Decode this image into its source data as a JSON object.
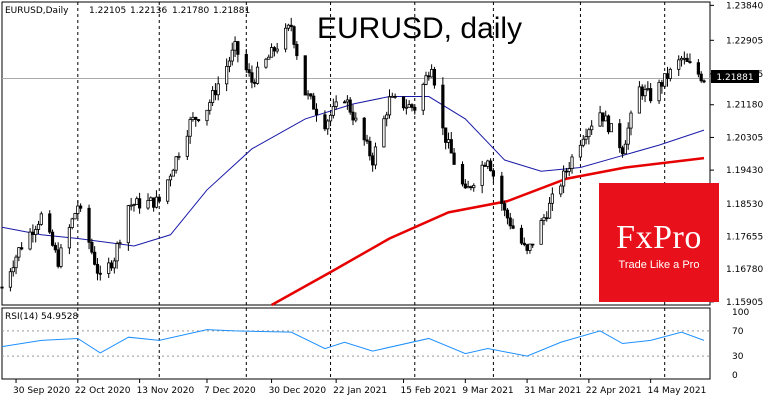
{
  "chart_data": {
    "type": "candlestick",
    "title": "EURUSD, daily",
    "header": {
      "symbol": "EURUSD,Daily",
      "ohlc": [
        "1.22105",
        "1.22136",
        "1.21780",
        "1.21881"
      ]
    },
    "last_price_label": "1.21881",
    "last_price": 1.21881,
    "y_ticks": [
      "1.23840",
      "1.22905",
      "1.22005",
      "1.21180",
      "1.20305",
      "1.19430",
      "1.18530",
      "1.17655",
      "1.16780",
      "1.15905"
    ],
    "ylim": [
      1.1582,
      1.2393
    ],
    "x_ticks": [
      "30 Sep 2020",
      "22 Oct 2020",
      "13 Nov 2020",
      "7 Dec 2020",
      "30 Dec 2020",
      "22 Jan 2021",
      "15 Feb 2021",
      "9 Mar 2021",
      "31 Mar 2021",
      "22 Apr 2021",
      "14 May 2021"
    ],
    "price_path": [
      {
        "date": "2020-09-25",
        "close": 1.163
      },
      {
        "date": "2020-10-01",
        "close": 1.173
      },
      {
        "date": "2020-10-09",
        "close": 1.182
      },
      {
        "date": "2020-10-15",
        "close": 1.17
      },
      {
        "date": "2020-10-22",
        "close": 1.185
      },
      {
        "date": "2020-10-30",
        "close": 1.165
      },
      {
        "date": "2020-11-04",
        "close": 1.171
      },
      {
        "date": "2020-11-09",
        "close": 1.185
      },
      {
        "date": "2020-11-20",
        "close": 1.186
      },
      {
        "date": "2020-12-01",
        "close": 1.207
      },
      {
        "date": "2020-12-07",
        "close": 1.211
      },
      {
        "date": "2020-12-17",
        "close": 1.227
      },
      {
        "date": "2020-12-23",
        "close": 1.218
      },
      {
        "date": "2021-01-06",
        "close": 1.233
      },
      {
        "date": "2021-01-11",
        "close": 1.215
      },
      {
        "date": "2021-01-18",
        "close": 1.207
      },
      {
        "date": "2021-01-25",
        "close": 1.214
      },
      {
        "date": "2021-02-04",
        "close": 1.197
      },
      {
        "date": "2021-02-10",
        "close": 1.213
      },
      {
        "date": "2021-02-19",
        "close": 1.211
      },
      {
        "date": "2021-02-25",
        "close": 1.223
      },
      {
        "date": "2021-03-01",
        "close": 1.205
      },
      {
        "date": "2021-03-09",
        "close": 1.188
      },
      {
        "date": "2021-03-17",
        "close": 1.198
      },
      {
        "date": "2021-03-23",
        "close": 1.183
      },
      {
        "date": "2021-03-31",
        "close": 1.172
      },
      {
        "date": "2021-04-05",
        "close": 1.18
      },
      {
        "date": "2021-04-12",
        "close": 1.191
      },
      {
        "date": "2021-04-20",
        "close": 1.204
      },
      {
        "date": "2021-04-26",
        "close": 1.21
      },
      {
        "date": "2021-05-04",
        "close": 1.2
      },
      {
        "date": "2021-05-10",
        "close": 1.216
      },
      {
        "date": "2021-05-14",
        "close": 1.214
      },
      {
        "date": "2021-05-25",
        "close": 1.224
      },
      {
        "date": "2021-06-02",
        "close": 1.2188
      }
    ],
    "ma_fast": [
      {
        "date": "2020-09-25",
        "value": 1.179
      },
      {
        "date": "2020-10-09",
        "value": 1.177
      },
      {
        "date": "2020-10-22",
        "value": 1.176
      },
      {
        "date": "2020-11-11",
        "value": 1.174
      },
      {
        "date": "2020-11-24",
        "value": 1.177
      },
      {
        "date": "2020-12-07",
        "value": 1.189
      },
      {
        "date": "2020-12-23",
        "value": 1.2
      },
      {
        "date": "2021-01-11",
        "value": 1.208
      },
      {
        "date": "2021-01-28",
        "value": 1.212
      },
      {
        "date": "2021-02-10",
        "value": 1.214
      },
      {
        "date": "2021-02-24",
        "value": 1.214
      },
      {
        "date": "2021-03-09",
        "value": 1.208
      },
      {
        "date": "2021-03-23",
        "value": 1.197
      },
      {
        "date": "2021-04-05",
        "value": 1.194
      },
      {
        "date": "2021-04-19",
        "value": 1.195
      },
      {
        "date": "2021-05-03",
        "value": 1.198
      },
      {
        "date": "2021-05-17",
        "value": 1.201
      },
      {
        "date": "2021-06-02",
        "value": 1.205
      }
    ],
    "ma_slow": [
      {
        "date": "2020-12-30",
        "value": 1.158
      },
      {
        "date": "2021-01-20",
        "value": 1.167
      },
      {
        "date": "2021-02-10",
        "value": 1.176
      },
      {
        "date": "2021-03-03",
        "value": 1.183
      },
      {
        "date": "2021-03-24",
        "value": 1.186
      },
      {
        "date": "2021-04-14",
        "value": 1.192
      },
      {
        "date": "2021-05-05",
        "value": 1.195
      },
      {
        "date": "2021-06-02",
        "value": 1.1975
      }
    ],
    "rsi": {
      "label": "RSI(14) 54.9528",
      "y_ticks": [
        "100",
        "70",
        "30",
        "0"
      ],
      "levels": [
        70,
        30
      ],
      "ylim": [
        0,
        100
      ],
      "values": [
        {
          "date": "2020-09-25",
          "value": 45
        },
        {
          "date": "2020-10-09",
          "value": 55
        },
        {
          "date": "2020-10-22",
          "value": 58
        },
        {
          "date": "2020-10-30",
          "value": 35
        },
        {
          "date": "2020-11-09",
          "value": 60
        },
        {
          "date": "2020-11-20",
          "value": 55
        },
        {
          "date": "2020-12-07",
          "value": 72
        },
        {
          "date": "2020-12-17",
          "value": 70
        },
        {
          "date": "2021-01-06",
          "value": 68
        },
        {
          "date": "2021-01-18",
          "value": 42
        },
        {
          "date": "2021-01-25",
          "value": 52
        },
        {
          "date": "2021-02-04",
          "value": 38
        },
        {
          "date": "2021-02-24",
          "value": 58
        },
        {
          "date": "2021-03-09",
          "value": 34
        },
        {
          "date": "2021-03-17",
          "value": 42
        },
        {
          "date": "2021-03-31",
          "value": 30
        },
        {
          "date": "2021-04-12",
          "value": 52
        },
        {
          "date": "2021-04-26",
          "value": 70
        },
        {
          "date": "2021-05-04",
          "value": 50
        },
        {
          "date": "2021-05-14",
          "value": 55
        },
        {
          "date": "2021-05-25",
          "value": 68
        },
        {
          "date": "2021-06-02",
          "value": 55
        }
      ]
    },
    "vertical_grid_dates": [
      "2020-10-22",
      "2020-11-20",
      "2020-12-21",
      "2021-01-20",
      "2021-02-19",
      "2021-03-19",
      "2021-04-19",
      "2021-05-19"
    ],
    "colors": {
      "candles": "#000000",
      "ma_fast": "#1a1aa8",
      "ma_slow": "#e60000",
      "rsi": "#1e90ff",
      "price_line": "#aaaaaa"
    },
    "grid": "vertical-dashed"
  },
  "brand": {
    "name": "FxPro",
    "tagline": "Trade Like a Pro",
    "color": "#e8101a"
  }
}
